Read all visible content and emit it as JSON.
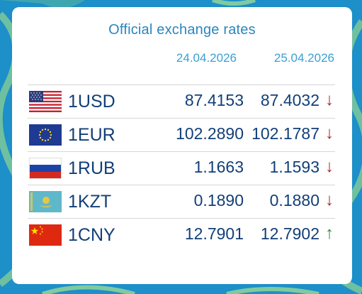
{
  "widget": {
    "title": "Official exchange rates",
    "date_prev": "24.04.2026",
    "date_curr": "25.04.2026"
  },
  "rates": [
    {
      "flag": "usa-flag-icon",
      "code": "1USD",
      "prev": "87.4153",
      "curr": "87.4032",
      "trend": "↓",
      "trend_icon": "arrow-down-icon"
    },
    {
      "flag": "eu-flag-icon",
      "code": "1EUR",
      "prev": "102.2890",
      "curr": "102.1787",
      "trend": "↓",
      "trend_icon": "arrow-down-icon"
    },
    {
      "flag": "russia-flag-icon",
      "code": "1RUB",
      "prev": "1.1663",
      "curr": "1.1593",
      "trend": "↓",
      "trend_icon": "arrow-down-icon"
    },
    {
      "flag": "kazakhstan-flag-icon",
      "code": "1KZT",
      "prev": "0.1890",
      "curr": "0.1880",
      "trend": "↓",
      "trend_icon": "arrow-down-icon"
    },
    {
      "flag": "china-flag-icon",
      "code": "1CNY",
      "prev": "12.7901",
      "curr": "12.7902",
      "trend": "↑",
      "trend_icon": "arrow-up-icon"
    }
  ],
  "colors": {
    "background": "#1d8fc9",
    "title": "#2a86bd",
    "value_text": "#123f78",
    "down_arrow": "#b5222a",
    "up_arrow": "#2f8a3a"
  }
}
